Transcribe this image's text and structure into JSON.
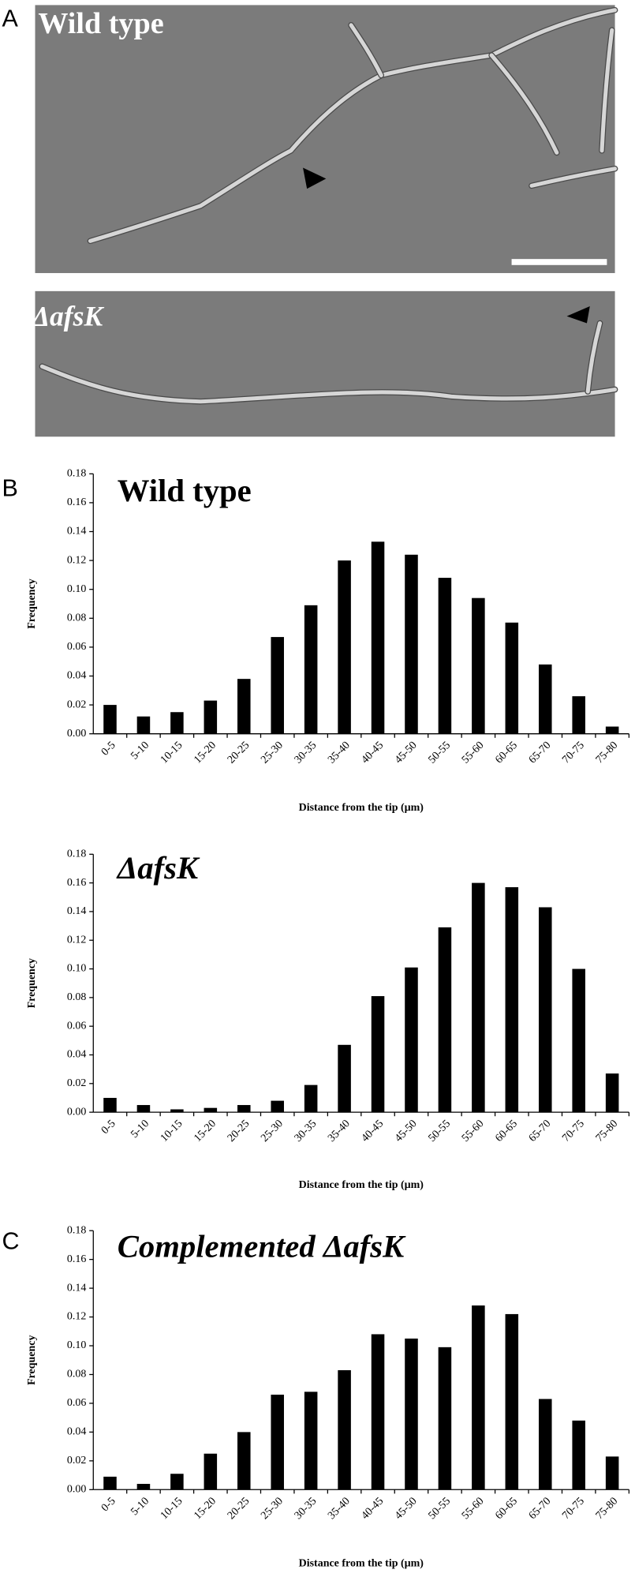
{
  "panel_labels": [
    "A",
    "B",
    "C"
  ],
  "micrographs": [
    {
      "label": "Wild type"
    },
    {
      "label": "ΔafsK"
    }
  ],
  "chart_data": [
    {
      "type": "bar",
      "title": "Wild type",
      "xlabel": "Distance from the tip (µm)",
      "ylabel": "Frequency",
      "color": "#000000",
      "categories": [
        "0-5",
        "5-10",
        "10-15",
        "15-20",
        "20-25",
        "25-30",
        "30-35",
        "35-40",
        "40-45",
        "45-50",
        "50-55",
        "55-60",
        "60-65",
        "65-70",
        "70-75",
        "75-80"
      ],
      "values": [
        0.02,
        0.012,
        0.015,
        0.023,
        0.038,
        0.067,
        0.089,
        0.12,
        0.133,
        0.124,
        0.108,
        0.094,
        0.077,
        0.048,
        0.026,
        0.005
      ],
      "ylim": [
        0,
        0.18
      ],
      "yticks": [
        {
          "value": 0,
          "label": "0.00"
        },
        {
          "value": 0.02,
          "label": "0.02"
        },
        {
          "value": 0.04,
          "label": "0.04"
        },
        {
          "value": 0.06,
          "label": "0.06"
        },
        {
          "value": 0.08,
          "label": "0.08"
        },
        {
          "value": 0.1,
          "label": "0.10"
        },
        {
          "value": 0.12,
          "label": "0.12"
        },
        {
          "value": 0.14,
          "label": "0.14"
        },
        {
          "value": 0.16,
          "label": "0.16"
        },
        {
          "value": 0.18,
          "label": "0.18"
        }
      ]
    },
    {
      "type": "bar",
      "title": "ΔafsK",
      "xlabel": "Distance from the tip (µm)",
      "ylabel": "Frequency",
      "color": "#000000",
      "categories": [
        "0-5",
        "5-10",
        "10-15",
        "15-20",
        "20-25",
        "25-30",
        "30-35",
        "35-40",
        "40-45",
        "45-50",
        "50-55",
        "55-60",
        "60-65",
        "65-70",
        "70-75",
        "75-80"
      ],
      "values": [
        0.01,
        0.005,
        0.002,
        0.003,
        0.005,
        0.008,
        0.019,
        0.047,
        0.081,
        0.101,
        0.129,
        0.16,
        0.157,
        0.143,
        0.1,
        0.027
      ],
      "ylim": [
        0,
        0.18
      ],
      "yticks": [
        {
          "value": 0,
          "label": "0.00"
        },
        {
          "value": 0.02,
          "label": "0.02"
        },
        {
          "value": 0.04,
          "label": "0.04"
        },
        {
          "value": 0.06,
          "label": "0.06"
        },
        {
          "value": 0.08,
          "label": "0.08"
        },
        {
          "value": 0.1,
          "label": "0.10"
        },
        {
          "value": 0.12,
          "label": "0.12"
        },
        {
          "value": 0.14,
          "label": "0.14"
        },
        {
          "value": 0.16,
          "label": "0.16"
        },
        {
          "value": 0.18,
          "label": "0.18"
        }
      ]
    },
    {
      "type": "bar",
      "title": "Complemented ΔafsK",
      "xlabel": "Distance from the tip (µm)",
      "ylabel": "Frequency",
      "color": "#000000",
      "categories": [
        "0-5",
        "5-10",
        "10-15",
        "15-20",
        "20-25",
        "25-30",
        "30-35",
        "35-40",
        "40-45",
        "45-50",
        "50-55",
        "55-60",
        "60-65",
        "65-70",
        "70-75",
        "75-80"
      ],
      "values": [
        0.009,
        0.004,
        0.011,
        0.025,
        0.04,
        0.066,
        0.068,
        0.083,
        0.108,
        0.105,
        0.099,
        0.128,
        0.122,
        0.063,
        0.048,
        0.023
      ],
      "ylim": [
        0,
        0.18
      ],
      "yticks": [
        {
          "value": 0,
          "label": "0.00"
        },
        {
          "value": 0.02,
          "label": "0.02"
        },
        {
          "value": 0.04,
          "label": "0.04"
        },
        {
          "value": 0.06,
          "label": "0.06"
        },
        {
          "value": 0.08,
          "label": "0.08"
        },
        {
          "value": 0.1,
          "label": "0.10"
        },
        {
          "value": 0.12,
          "label": "0.12"
        },
        {
          "value": 0.14,
          "label": "0.14"
        },
        {
          "value": 0.16,
          "label": "0.16"
        },
        {
          "value": 0.18,
          "label": "0.18"
        }
      ]
    }
  ]
}
